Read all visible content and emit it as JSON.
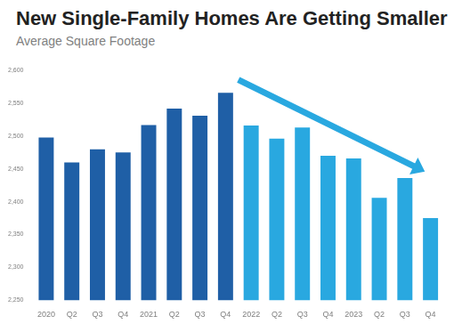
{
  "chart_data": {
    "type": "bar",
    "title": "New Single-Family Homes Are Getting Smaller",
    "subtitle": "Average Square Footage",
    "categories": [
      "2020",
      "Q2",
      "Q3",
      "Q4",
      "2021",
      "Q2",
      "Q3",
      "Q4",
      "2022",
      "Q2",
      "Q3",
      "Q4",
      "2023",
      "Q2",
      "Q3",
      "Q4"
    ],
    "values": [
      2498,
      2460,
      2480,
      2475,
      2517,
      2542,
      2531,
      2566,
      2516,
      2496,
      2513,
      2470,
      2466,
      2406,
      2436,
      2375
    ],
    "colors": [
      "#1f5fa6",
      "#1f5fa6",
      "#1f5fa6",
      "#1f5fa6",
      "#1f5fa6",
      "#1f5fa6",
      "#1f5fa6",
      "#1f5fa6",
      "#29a8e0",
      "#29a8e0",
      "#29a8e0",
      "#29a8e0",
      "#29a8e0",
      "#29a8e0",
      "#29a8e0",
      "#29a8e0"
    ],
    "ylim": [
      2250,
      2600
    ],
    "yticks": [
      {
        "value": 2250,
        "label": "2,250"
      },
      {
        "value": 2300,
        "label": "2,300"
      },
      {
        "value": 2350,
        "label": "2,350"
      },
      {
        "value": 2400,
        "label": "2,400"
      },
      {
        "value": 2450,
        "label": "2,450"
      },
      {
        "value": 2500,
        "label": "2,500"
      },
      {
        "value": 2550,
        "label": "2,550"
      },
      {
        "value": 2600,
        "label": "2,600"
      }
    ],
    "grid": false
  }
}
